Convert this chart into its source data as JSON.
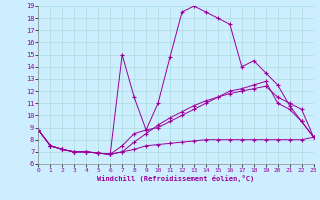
{
  "title": "",
  "xlabel": "Windchill (Refroidissement éolien,°C)",
  "bg_color": "#cceeff",
  "line_color": "#990099",
  "grid_color": "#aadddd",
  "xlim": [
    0,
    23
  ],
  "ylim": [
    6,
    19
  ],
  "xticks": [
    0,
    1,
    2,
    3,
    4,
    5,
    6,
    7,
    8,
    9,
    10,
    11,
    12,
    13,
    14,
    15,
    16,
    17,
    18,
    19,
    20,
    21,
    22,
    23
  ],
  "yticks": [
    6,
    7,
    8,
    9,
    10,
    11,
    12,
    13,
    14,
    15,
    16,
    17,
    18,
    19
  ],
  "series": [
    {
      "x": [
        0,
        1,
        2,
        3,
        4,
        5,
        6,
        7,
        8,
        9,
        10,
        11,
        12,
        13,
        14,
        15,
        16,
        17,
        18,
        19,
        20,
        21,
        22,
        23
      ],
      "y": [
        8.8,
        7.5,
        7.2,
        7.0,
        7.0,
        6.9,
        6.8,
        7.5,
        8.5,
        8.8,
        11.0,
        14.8,
        18.5,
        19.0,
        18.5,
        18.0,
        17.5,
        14.0,
        14.5,
        13.5,
        12.5,
        10.8,
        9.5,
        8.2
      ]
    },
    {
      "x": [
        0,
        1,
        2,
        3,
        4,
        5,
        6,
        7,
        8,
        9,
        10,
        11,
        12,
        13,
        14,
        15,
        16,
        17,
        18,
        19,
        20,
        21,
        22,
        23
      ],
      "y": [
        8.8,
        7.5,
        7.2,
        7.0,
        7.0,
        6.9,
        6.8,
        15.0,
        11.5,
        8.8,
        9.0,
        9.5,
        10.0,
        10.5,
        11.0,
        11.5,
        12.0,
        12.2,
        12.5,
        12.8,
        11.0,
        10.5,
        9.5,
        8.2
      ]
    },
    {
      "x": [
        0,
        1,
        2,
        3,
        4,
        5,
        6,
        7,
        8,
        9,
        10,
        11,
        12,
        13,
        14,
        15,
        16,
        17,
        18,
        19,
        20,
        21,
        22,
        23
      ],
      "y": [
        8.8,
        7.5,
        7.2,
        7.0,
        7.0,
        6.9,
        6.8,
        7.0,
        7.2,
        7.5,
        7.6,
        7.7,
        7.8,
        7.9,
        8.0,
        8.0,
        8.0,
        8.0,
        8.0,
        8.0,
        8.0,
        8.0,
        8.0,
        8.2
      ]
    },
    {
      "x": [
        0,
        1,
        2,
        3,
        4,
        5,
        6,
        7,
        8,
        9,
        10,
        11,
        12,
        13,
        14,
        15,
        16,
        17,
        18,
        19,
        20,
        21,
        22,
        23
      ],
      "y": [
        8.8,
        7.5,
        7.2,
        7.0,
        7.0,
        6.9,
        6.8,
        7.0,
        7.8,
        8.5,
        9.2,
        9.8,
        10.3,
        10.8,
        11.2,
        11.5,
        11.8,
        12.0,
        12.2,
        12.4,
        11.5,
        11.0,
        10.5,
        8.2
      ]
    }
  ]
}
